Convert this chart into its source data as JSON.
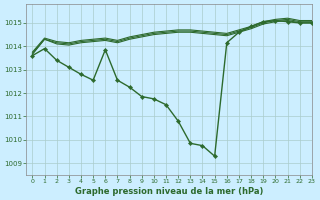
{
  "title": "Graphe pression niveau de la mer (hPa)",
  "background_color": "#cceeff",
  "grid_color": "#aacccc",
  "line_color": "#2d6a2d",
  "xlim": [
    -0.5,
    23
  ],
  "ylim": [
    1008.5,
    1015.8
  ],
  "yticks": [
    1009,
    1010,
    1011,
    1012,
    1013,
    1014,
    1015
  ],
  "xticks": [
    0,
    1,
    2,
    3,
    4,
    5,
    6,
    7,
    8,
    9,
    10,
    11,
    12,
    13,
    14,
    15,
    16,
    17,
    18,
    19,
    20,
    21,
    22,
    23
  ],
  "main_line": {
    "x": [
      0,
      1,
      2,
      3,
      4,
      5,
      6,
      7,
      8,
      9,
      10,
      11,
      12,
      13,
      14,
      15,
      16,
      17,
      18,
      19,
      20,
      21,
      22,
      23
    ],
    "y": [
      1013.6,
      1013.9,
      1013.4,
      1013.1,
      1012.8,
      1012.55,
      1013.85,
      1012.55,
      1012.25,
      1011.85,
      1011.75,
      1011.5,
      1010.8,
      1009.85,
      1009.75,
      1009.3,
      1014.15,
      1014.6,
      1014.85,
      1015.05,
      1015.1,
      1015.05,
      1015.0,
      1015.0
    ]
  },
  "upper_lines": [
    {
      "x": [
        0,
        1,
        2,
        3,
        4,
        5,
        6,
        7,
        8,
        9,
        10,
        11,
        12,
        13,
        14,
        15,
        16,
        17,
        18,
        19,
        20,
        21,
        22,
        23
      ],
      "y": [
        1013.65,
        1014.3,
        1014.15,
        1014.1,
        1014.2,
        1014.25,
        1014.3,
        1014.2,
        1014.35,
        1014.45,
        1014.55,
        1014.6,
        1014.65,
        1014.65,
        1014.6,
        1014.55,
        1014.5,
        1014.65,
        1014.8,
        1015.0,
        1015.1,
        1015.15,
        1015.05,
        1015.05
      ]
    },
    {
      "x": [
        0,
        1,
        2,
        3,
        4,
        5,
        6,
        7,
        8,
        9,
        10,
        11,
        12,
        13,
        14,
        15,
        16,
        17,
        18,
        19,
        20,
        21,
        22,
        23
      ],
      "y": [
        1013.7,
        1014.3,
        1014.1,
        1014.05,
        1014.15,
        1014.2,
        1014.25,
        1014.15,
        1014.3,
        1014.4,
        1014.5,
        1014.55,
        1014.6,
        1014.6,
        1014.55,
        1014.5,
        1014.45,
        1014.6,
        1014.75,
        1014.95,
        1015.05,
        1015.1,
        1015.0,
        1015.0
      ]
    },
    {
      "x": [
        0,
        1,
        2,
        3,
        4,
        5,
        6,
        7,
        8,
        9,
        10,
        11,
        12,
        13,
        14,
        15,
        16,
        17,
        18,
        19,
        20,
        21,
        22,
        23
      ],
      "y": [
        1013.75,
        1014.35,
        1014.2,
        1014.15,
        1014.25,
        1014.3,
        1014.35,
        1014.25,
        1014.4,
        1014.5,
        1014.6,
        1014.65,
        1014.7,
        1014.7,
        1014.65,
        1014.6,
        1014.55,
        1014.7,
        1014.85,
        1015.05,
        1015.15,
        1015.2,
        1015.1,
        1015.1
      ]
    }
  ]
}
